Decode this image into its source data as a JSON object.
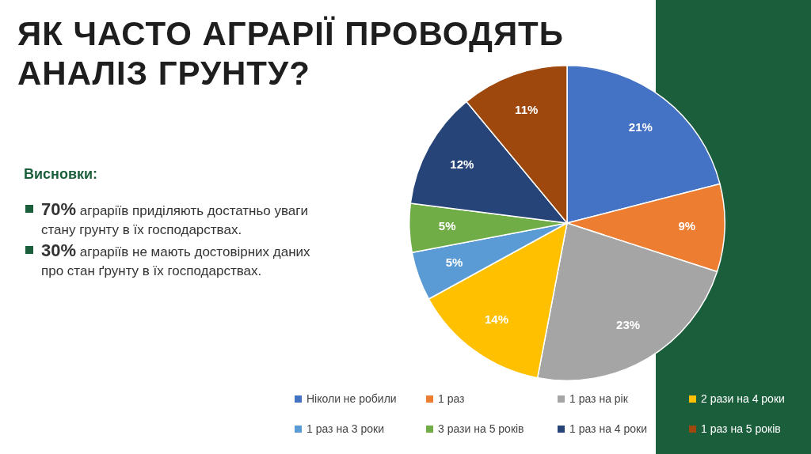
{
  "chart_data": {
    "type": "pie",
    "title": "ЯК ЧАСТО АГРАРІЇ ПРОВОДЯТЬ АНАЛІЗ ГРУНТУ?",
    "categories": [
      "Ніколи не робили",
      "1 раз",
      "1 раз на рік",
      "2 рази на 4 роки",
      "1 раз на 3 роки",
      "3 рази на 5 років",
      "1 раз на 4 роки",
      "1 раз на 5 років"
    ],
    "values": [
      21,
      9,
      23,
      14,
      5,
      5,
      12,
      11
    ],
    "colors": [
      "#4472c4",
      "#ed7d31",
      "#a5a5a5",
      "#ffc000",
      "#5b9bd5",
      "#70ad47",
      "#264478",
      "#9e480e"
    ],
    "value_labels": [
      "21%",
      "9%",
      "23%",
      "14%",
      "5%",
      "5%",
      "12%",
      "11%"
    ],
    "legend": "bottom",
    "annotations": [
      "Висновки:",
      "70% аграріїв приділяють достатньо уваги стану грунту в їх господарствах.",
      "30% аграріїв не мають достовірних даних про стан ґрунту в їх господарствах."
    ]
  }
}
